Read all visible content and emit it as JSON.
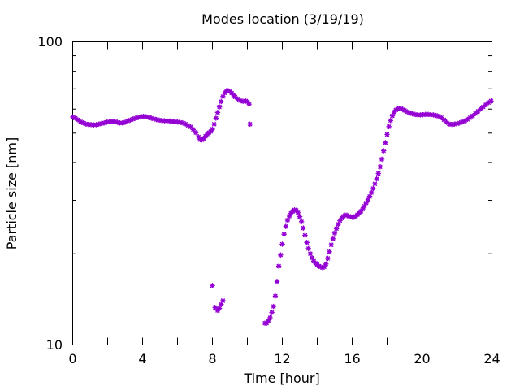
{
  "chart_data": {
    "type": "scatter",
    "title": "Modes location (3/19/19)",
    "xlabel": "Time [hour]",
    "ylabel": "Particle size [nm]",
    "xlim": [
      0,
      24
    ],
    "ylim": [
      10,
      100
    ],
    "yscale": "log",
    "grid": false,
    "legend": "none",
    "marker_color": "#9400d3",
    "xticks": [
      0,
      2,
      4,
      6,
      8,
      10,
      12,
      14,
      16,
      18,
      20,
      22,
      24
    ],
    "xtick_labels": [
      "0",
      "4",
      "8",
      "12",
      "16",
      "20",
      "24"
    ],
    "ytick_labels": [
      "10",
      "100"
    ],
    "series": [
      {
        "values": [
          [
            0.0,
            56.5
          ],
          [
            0.15,
            56.0
          ],
          [
            0.3,
            55.3
          ],
          [
            0.45,
            54.5
          ],
          [
            0.6,
            54.0
          ],
          [
            0.75,
            53.6
          ],
          [
            0.9,
            53.4
          ],
          [
            1.05,
            53.3
          ],
          [
            1.2,
            53.2
          ],
          [
            1.35,
            53.3
          ],
          [
            1.5,
            53.5
          ],
          [
            1.65,
            53.8
          ],
          [
            1.8,
            54.0
          ],
          [
            1.95,
            54.3
          ],
          [
            2.1,
            54.5
          ],
          [
            2.25,
            54.6
          ],
          [
            2.4,
            54.5
          ],
          [
            2.55,
            54.3
          ],
          [
            2.7,
            54.0
          ],
          [
            2.85,
            54.0
          ],
          [
            3.0,
            54.3
          ],
          [
            3.15,
            54.8
          ],
          [
            3.3,
            55.2
          ],
          [
            3.45,
            55.6
          ],
          [
            3.6,
            56.0
          ],
          [
            3.75,
            56.3
          ],
          [
            3.9,
            56.6
          ],
          [
            4.05,
            56.8
          ],
          [
            4.2,
            56.6
          ],
          [
            4.35,
            56.3
          ],
          [
            4.5,
            56.0
          ],
          [
            4.65,
            55.7
          ],
          [
            4.8,
            55.4
          ],
          [
            4.95,
            55.2
          ],
          [
            5.1,
            55.0
          ],
          [
            5.25,
            54.9
          ],
          [
            5.4,
            54.9
          ],
          [
            5.55,
            54.8
          ],
          [
            5.7,
            54.6
          ],
          [
            5.85,
            54.5
          ],
          [
            6.0,
            54.4
          ],
          [
            6.15,
            54.2
          ],
          [
            6.3,
            54.0
          ],
          [
            6.45,
            53.6
          ],
          [
            6.6,
            53.0
          ],
          [
            6.75,
            52.4
          ],
          [
            6.9,
            51.4
          ],
          [
            7.05,
            50.2
          ],
          [
            7.2,
            48.6
          ],
          [
            7.3,
            47.6
          ],
          [
            7.4,
            47.5
          ],
          [
            7.5,
            48.0
          ],
          [
            7.6,
            48.8
          ],
          [
            7.7,
            49.6
          ],
          [
            7.8,
            50.2
          ],
          [
            7.9,
            50.6
          ],
          [
            8.0,
            51.5
          ],
          [
            8.1,
            53.5
          ],
          [
            8.2,
            56.0
          ],
          [
            8.3,
            58.5
          ],
          [
            8.4,
            61.0
          ],
          [
            8.5,
            63.5
          ],
          [
            8.6,
            66.0
          ],
          [
            8.7,
            67.8
          ],
          [
            8.8,
            68.9
          ],
          [
            8.9,
            69.0
          ],
          [
            9.0,
            68.6
          ],
          [
            9.1,
            67.8
          ],
          [
            9.2,
            66.8
          ],
          [
            9.3,
            65.8
          ],
          [
            9.45,
            64.8
          ],
          [
            9.6,
            64.0
          ],
          [
            9.75,
            63.6
          ],
          [
            9.9,
            63.8
          ],
          [
            10.0,
            63.5
          ],
          [
            10.1,
            62.3
          ],
          [
            10.15,
            53.5
          ],
          [
            8.0,
            15.7
          ],
          [
            8.15,
            13.3
          ],
          [
            8.3,
            13.0
          ],
          [
            8.4,
            13.2
          ],
          [
            8.5,
            13.6
          ],
          [
            8.6,
            14.0
          ],
          [
            11.0,
            11.8
          ],
          [
            11.1,
            11.8
          ],
          [
            11.2,
            12.0
          ],
          [
            11.3,
            12.3
          ],
          [
            11.4,
            12.8
          ],
          [
            11.5,
            13.4
          ],
          [
            11.6,
            14.5
          ],
          [
            11.7,
            16.2
          ],
          [
            11.8,
            18.2
          ],
          [
            11.9,
            19.8
          ],
          [
            12.0,
            21.5
          ],
          [
            12.1,
            23.2
          ],
          [
            12.2,
            24.6
          ],
          [
            12.3,
            25.8
          ],
          [
            12.4,
            26.6
          ],
          [
            12.5,
            27.2
          ],
          [
            12.6,
            27.6
          ],
          [
            12.7,
            27.9
          ],
          [
            12.8,
            27.8
          ],
          [
            12.9,
            27.3
          ],
          [
            13.0,
            26.5
          ],
          [
            13.1,
            25.5
          ],
          [
            13.2,
            24.3
          ],
          [
            13.3,
            23.0
          ],
          [
            13.4,
            21.8
          ],
          [
            13.5,
            20.8
          ],
          [
            13.6,
            20.0
          ],
          [
            13.7,
            19.4
          ],
          [
            13.8,
            18.9
          ],
          [
            13.9,
            18.6
          ],
          [
            14.0,
            18.4
          ],
          [
            14.1,
            18.2
          ],
          [
            14.2,
            18.1
          ],
          [
            14.3,
            18.0
          ],
          [
            14.4,
            18.1
          ],
          [
            14.5,
            18.5
          ],
          [
            14.6,
            19.3
          ],
          [
            14.7,
            20.3
          ],
          [
            14.8,
            21.4
          ],
          [
            14.9,
            22.4
          ],
          [
            15.0,
            23.4
          ],
          [
            15.1,
            24.2
          ],
          [
            15.2,
            25.0
          ],
          [
            15.3,
            25.7
          ],
          [
            15.4,
            26.2
          ],
          [
            15.5,
            26.6
          ],
          [
            15.6,
            26.8
          ],
          [
            15.7,
            26.8
          ],
          [
            15.8,
            26.6
          ],
          [
            15.9,
            26.5
          ],
          [
            16.0,
            26.4
          ],
          [
            16.1,
            26.4
          ],
          [
            16.2,
            26.6
          ],
          [
            16.3,
            26.9
          ],
          [
            16.4,
            27.2
          ],
          [
            16.5,
            27.6
          ],
          [
            16.6,
            28.1
          ],
          [
            16.7,
            28.7
          ],
          [
            16.8,
            29.4
          ],
          [
            16.9,
            30.1
          ],
          [
            17.0,
            30.9
          ],
          [
            17.1,
            31.8
          ],
          [
            17.2,
            32.8
          ],
          [
            17.3,
            34.0
          ],
          [
            17.4,
            35.3
          ],
          [
            17.5,
            36.8
          ],
          [
            17.6,
            38.7
          ],
          [
            17.7,
            41.0
          ],
          [
            17.8,
            43.7
          ],
          [
            17.9,
            46.5
          ],
          [
            18.0,
            49.5
          ],
          [
            18.1,
            52.5
          ],
          [
            18.2,
            55.0
          ],
          [
            18.3,
            57.0
          ],
          [
            18.4,
            58.6
          ],
          [
            18.5,
            59.6
          ],
          [
            18.6,
            60.1
          ],
          [
            18.7,
            60.3
          ],
          [
            18.8,
            60.2
          ],
          [
            18.9,
            59.8
          ],
          [
            19.0,
            59.4
          ],
          [
            19.15,
            58.8
          ],
          [
            19.3,
            58.3
          ],
          [
            19.45,
            57.9
          ],
          [
            19.6,
            57.6
          ],
          [
            19.75,
            57.4
          ],
          [
            19.9,
            57.4
          ],
          [
            20.05,
            57.5
          ],
          [
            20.2,
            57.6
          ],
          [
            20.35,
            57.6
          ],
          [
            20.5,
            57.5
          ],
          [
            20.65,
            57.4
          ],
          [
            20.8,
            57.2
          ],
          [
            20.95,
            56.8
          ],
          [
            21.1,
            56.2
          ],
          [
            21.25,
            55.3
          ],
          [
            21.4,
            54.3
          ],
          [
            21.55,
            53.6
          ],
          [
            21.7,
            53.4
          ],
          [
            21.85,
            53.5
          ],
          [
            22.0,
            53.7
          ],
          [
            22.15,
            54.0
          ],
          [
            22.3,
            54.4
          ],
          [
            22.45,
            54.9
          ],
          [
            22.6,
            55.5
          ],
          [
            22.75,
            56.2
          ],
          [
            22.9,
            57.0
          ],
          [
            23.05,
            58.0
          ],
          [
            23.2,
            59.0
          ],
          [
            23.35,
            60.0
          ],
          [
            23.5,
            61.0
          ],
          [
            23.65,
            62.0
          ],
          [
            23.8,
            63.0
          ],
          [
            23.95,
            63.8
          ]
        ]
      }
    ]
  }
}
